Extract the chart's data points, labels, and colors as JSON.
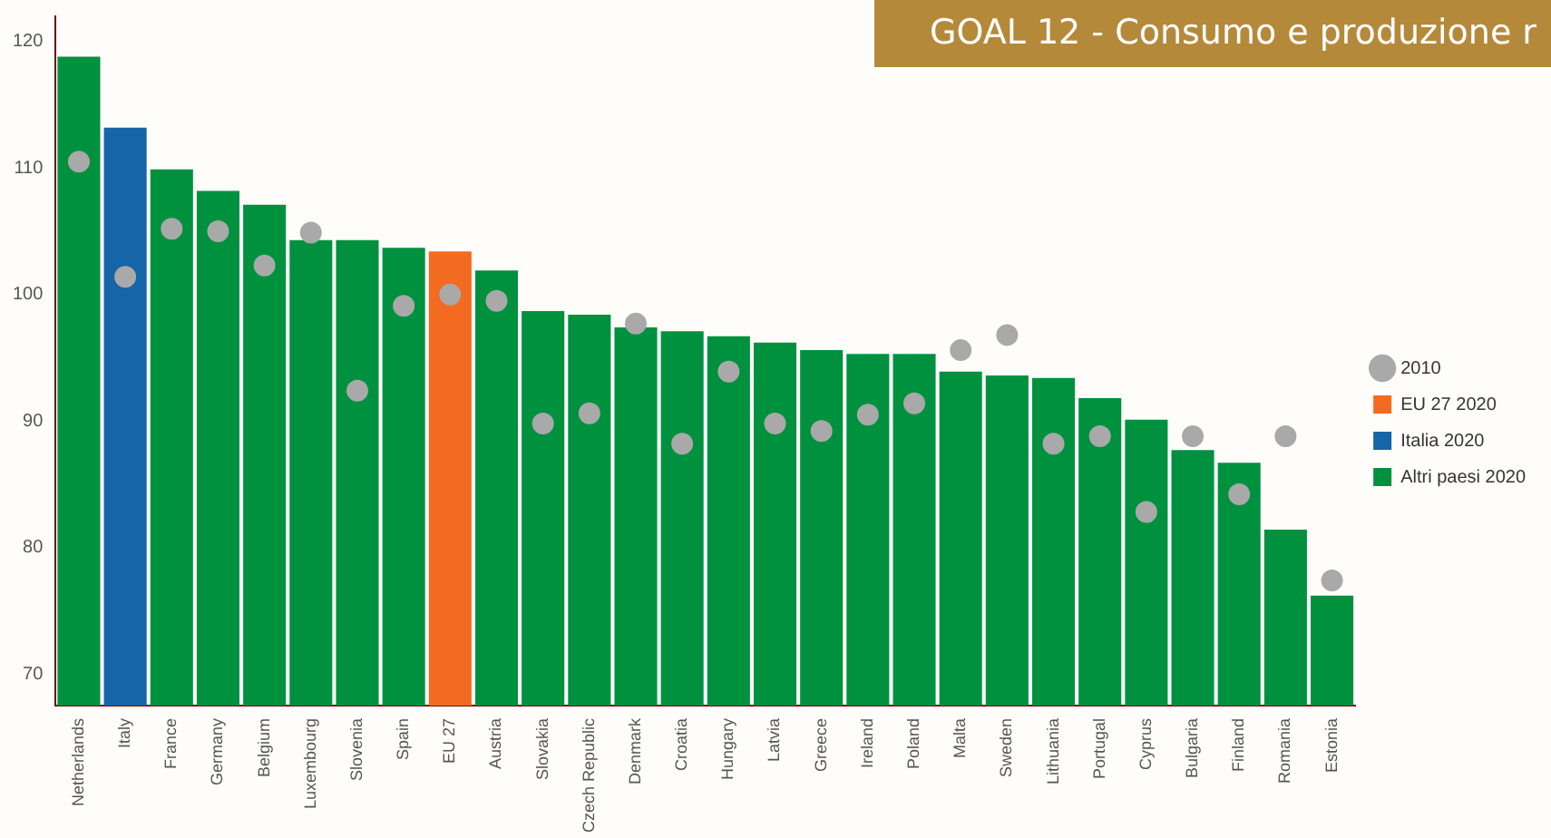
{
  "chart_data": {
    "type": "bar",
    "title": "GOAL 12 - Consumo e produzione r",
    "categories": [
      "Netherlands",
      "Italy",
      "France",
      "Germany",
      "Belgium",
      "Luxembourg",
      "Slovenia",
      "Spain",
      "EU 27",
      "Austria",
      "Slovakia",
      "Czech Republic",
      "Denmark",
      "Croatia",
      "Hungary",
      "Latvia",
      "Greece",
      "Ireland",
      "Poland",
      "Malta",
      "Sweden",
      "Lithuania",
      "Portugal",
      "Cyprus",
      "Bulgaria",
      "Finland",
      "Romania",
      "Estonia"
    ],
    "series": [
      {
        "name": "EU 27 2020",
        "color": "#f26b21",
        "values": [
          null,
          null,
          null,
          null,
          null,
          null,
          null,
          null,
          103.4,
          null,
          null,
          null,
          null,
          null,
          null,
          null,
          null,
          null,
          null,
          null,
          null,
          null,
          null,
          null,
          null,
          null,
          null,
          null
        ]
      },
      {
        "name": "Italia 2020",
        "color": "#1565a8",
        "values": [
          null,
          113.2,
          null,
          null,
          null,
          null,
          null,
          null,
          null,
          null,
          null,
          null,
          null,
          null,
          null,
          null,
          null,
          null,
          null,
          null,
          null,
          null,
          null,
          null,
          null,
          null,
          null,
          null
        ]
      },
      {
        "name": "Altri paesi 2020",
        "color": "#00913f",
        "values": [
          118.8,
          null,
          109.9,
          108.2,
          107.1,
          104.3,
          104.3,
          103.7,
          null,
          101.9,
          98.7,
          98.4,
          97.4,
          97.1,
          96.7,
          96.2,
          95.6,
          95.3,
          95.3,
          93.9,
          93.6,
          93.4,
          91.8,
          90.1,
          87.7,
          86.7,
          81.4,
          76.2
        ]
      },
      {
        "name": "2010",
        "type": "scatter",
        "color": "#a9a9a9",
        "x": [
          "Netherlands",
          "Italy",
          "France",
          "Germany",
          "Belgium",
          "Luxembourg",
          "Slovenia",
          "Spain",
          "EU 27",
          "Austria",
          "Slovakia",
          "Czech Republic",
          "Denmark",
          "Croatia",
          "Hungary",
          "Latvia",
          "Greece",
          "Ireland",
          "Poland",
          "Malta",
          "Sweden",
          "Lithuania",
          "Portugal",
          "Cyprus",
          "Bulgaria",
          "Finland",
          "Romania",
          "Estonia"
        ],
        "values": [
          110.5,
          101.4,
          105.2,
          105.0,
          102.3,
          104.9,
          92.4,
          99.1,
          100.0,
          99.5,
          89.8,
          90.6,
          97.7,
          88.2,
          93.9,
          89.8,
          89.2,
          90.5,
          91.4,
          95.6,
          96.8,
          88.2,
          88.8,
          82.8,
          88.8,
          84.2,
          88.8,
          77.4
        ]
      }
    ],
    "ylim": [
      67.5,
      122
    ],
    "yticks": [
      70,
      80,
      90,
      100,
      110,
      120
    ],
    "grid": false,
    "legend": "right",
    "marker": "circle"
  }
}
